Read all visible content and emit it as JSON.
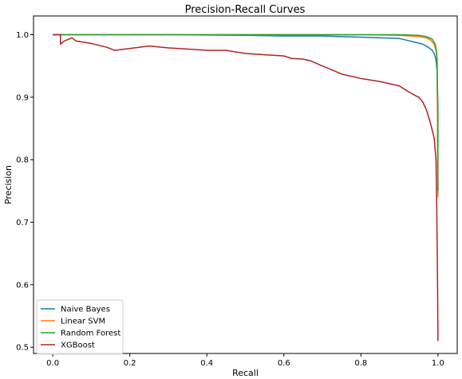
{
  "chart_data": {
    "type": "line",
    "title": "Precision-Recall Curves",
    "xlabel": "Recall",
    "ylabel": "Precision",
    "xlim": [
      -0.05,
      1.05
    ],
    "ylim": [
      0.49,
      1.03
    ],
    "xticks": [
      0.0,
      0.2,
      0.4,
      0.6,
      0.8,
      1.0
    ],
    "xtick_labels": [
      "0.0",
      "0.2",
      "0.4",
      "0.6",
      "0.8",
      "1.0"
    ],
    "yticks": [
      0.5,
      0.6,
      0.7,
      0.8,
      0.9,
      1.0
    ],
    "ytick_labels": [
      "0.5",
      "0.6",
      "0.7",
      "0.8",
      "0.9",
      "1.0"
    ],
    "grid": false,
    "legend_position": "lower-left",
    "series": [
      {
        "name": "Naive Bayes",
        "color": "#1f77b4",
        "points": [
          [
            0.0,
            1.0
          ],
          [
            0.28,
            1.0
          ],
          [
            0.5,
            0.999
          ],
          [
            0.6,
            0.998
          ],
          [
            0.7,
            0.998
          ],
          [
            0.75,
            0.997
          ],
          [
            0.8,
            0.996
          ],
          [
            0.85,
            0.995
          ],
          [
            0.9,
            0.994
          ],
          [
            0.92,
            0.991
          ],
          [
            0.94,
            0.988
          ],
          [
            0.96,
            0.985
          ],
          [
            0.975,
            0.98
          ],
          [
            0.985,
            0.975
          ],
          [
            0.99,
            0.97
          ],
          [
            0.995,
            0.96
          ],
          [
            0.998,
            0.94
          ],
          [
            1.0,
            0.75
          ]
        ]
      },
      {
        "name": "Linear SVM",
        "color": "#ff7f0e",
        "points": [
          [
            0.0,
            1.0
          ],
          [
            0.6,
            1.0
          ],
          [
            0.8,
            1.0
          ],
          [
            0.9,
            0.999
          ],
          [
            0.95,
            0.997
          ],
          [
            0.97,
            0.995
          ],
          [
            0.98,
            0.992
          ],
          [
            0.99,
            0.985
          ],
          [
            0.995,
            0.975
          ],
          [
            0.998,
            0.96
          ],
          [
            1.0,
            0.74
          ]
        ]
      },
      {
        "name": "Random Forest",
        "color": "#2ca02c",
        "points": [
          [
            0.0,
            1.0
          ],
          [
            0.6,
            1.0
          ],
          [
            0.9,
            1.0
          ],
          [
            0.95,
            0.999
          ],
          [
            0.97,
            0.997
          ],
          [
            0.985,
            0.993
          ],
          [
            0.993,
            0.985
          ],
          [
            0.997,
            0.97
          ],
          [
            1.0,
            0.88
          ],
          [
            1.0,
            0.75
          ]
        ]
      },
      {
        "name": "XGBoost",
        "color": "#b22222",
        "points": [
          [
            0.0,
            1.0
          ],
          [
            0.02,
            1.0
          ],
          [
            0.02,
            0.985
          ],
          [
            0.03,
            0.99
          ],
          [
            0.05,
            0.995
          ],
          [
            0.06,
            0.99
          ],
          [
            0.08,
            0.988
          ],
          [
            0.1,
            0.986
          ],
          [
            0.12,
            0.983
          ],
          [
            0.14,
            0.98
          ],
          [
            0.16,
            0.975
          ],
          [
            0.2,
            0.978
          ],
          [
            0.25,
            0.982
          ],
          [
            0.3,
            0.979
          ],
          [
            0.35,
            0.977
          ],
          [
            0.4,
            0.975
          ],
          [
            0.45,
            0.975
          ],
          [
            0.5,
            0.97
          ],
          [
            0.55,
            0.968
          ],
          [
            0.6,
            0.966
          ],
          [
            0.62,
            0.962
          ],
          [
            0.65,
            0.961
          ],
          [
            0.67,
            0.958
          ],
          [
            0.7,
            0.95
          ],
          [
            0.72,
            0.945
          ],
          [
            0.75,
            0.937
          ],
          [
            0.8,
            0.93
          ],
          [
            0.85,
            0.925
          ],
          [
            0.9,
            0.918
          ],
          [
            0.92,
            0.91
          ],
          [
            0.94,
            0.903
          ],
          [
            0.95,
            0.9
          ],
          [
            0.96,
            0.893
          ],
          [
            0.97,
            0.88
          ],
          [
            0.98,
            0.86
          ],
          [
            0.99,
            0.835
          ],
          [
            0.995,
            0.8
          ],
          [
            0.997,
            0.72
          ],
          [
            0.999,
            0.6
          ],
          [
            1.0,
            0.51
          ]
        ]
      }
    ]
  }
}
